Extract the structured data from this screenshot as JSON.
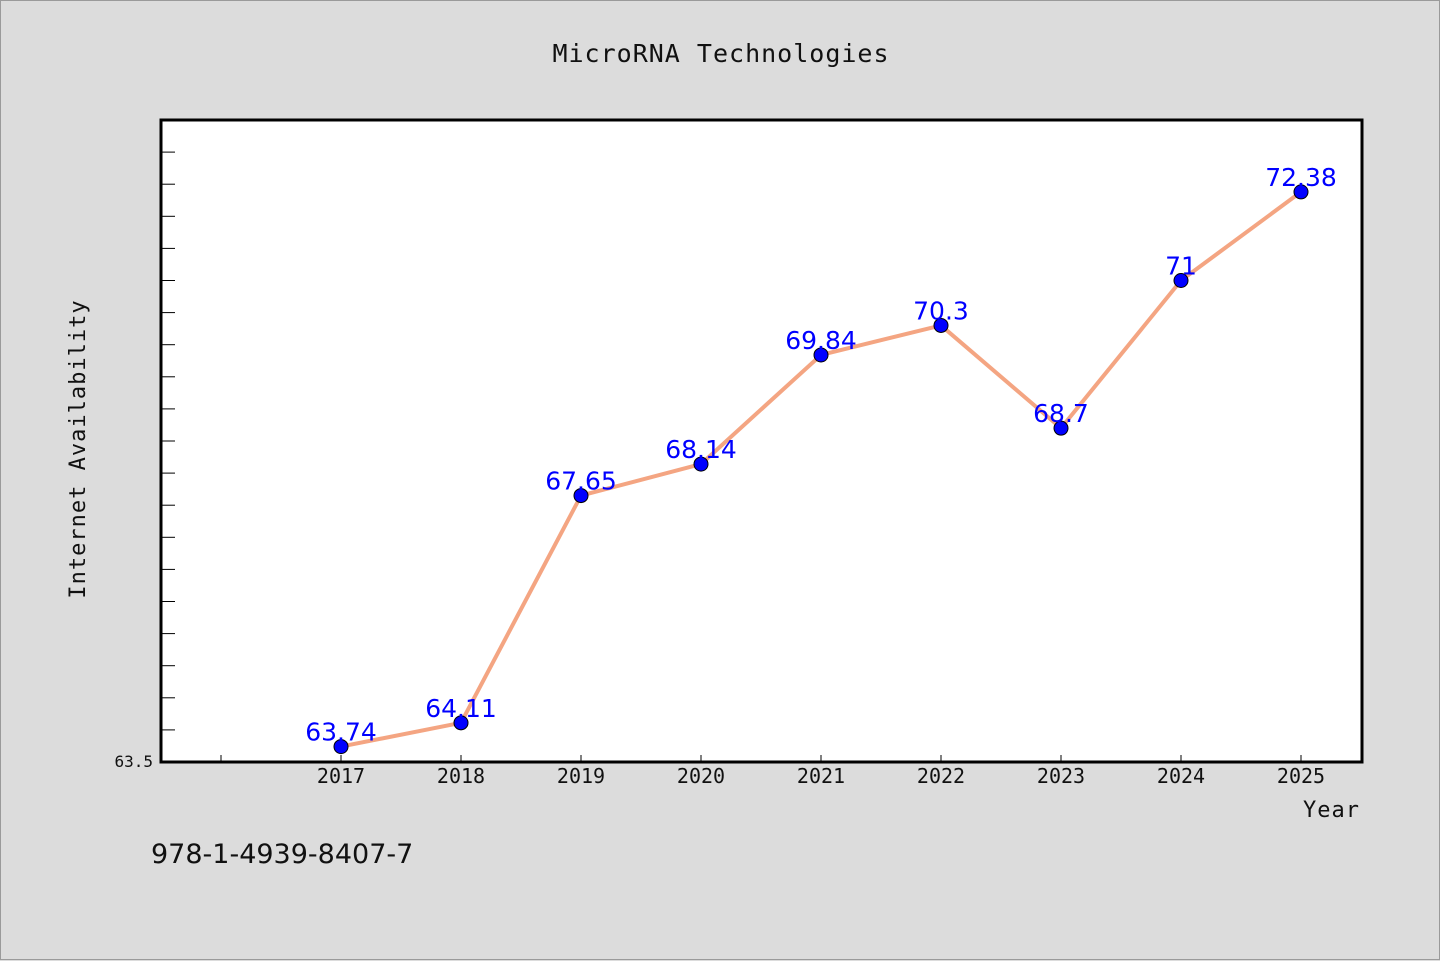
{
  "chart_data": {
    "type": "line",
    "title": "MicroRNA Technologies",
    "xlabel": "Year",
    "ylabel": "Internet Availability",
    "categories": [
      "2017",
      "2018",
      "2019",
      "2020",
      "2021",
      "2022",
      "2023",
      "2024",
      "2025"
    ],
    "series": [
      {
        "values": [
          63.74,
          64.11,
          67.65,
          68.14,
          69.84,
          70.3,
          68.7,
          71,
          72.38
        ],
        "labels": [
          "63.74",
          "64.11",
          "67.65",
          "68.14",
          "69.84",
          "70.3",
          "68.7",
          "71",
          "72.38"
        ],
        "line_color": "#f4a582",
        "marker_color": "#0000ff"
      }
    ],
    "ylim": [
      63.5,
      73.5
    ],
    "y_min_label": "63.5",
    "grid": false,
    "legend": "none"
  },
  "footer": {
    "isbn": "978-1-4939-8407-7"
  },
  "colors": {
    "background": "#dcdcdc",
    "plot_background": "#ffffff",
    "data_label": "#0000ff"
  }
}
